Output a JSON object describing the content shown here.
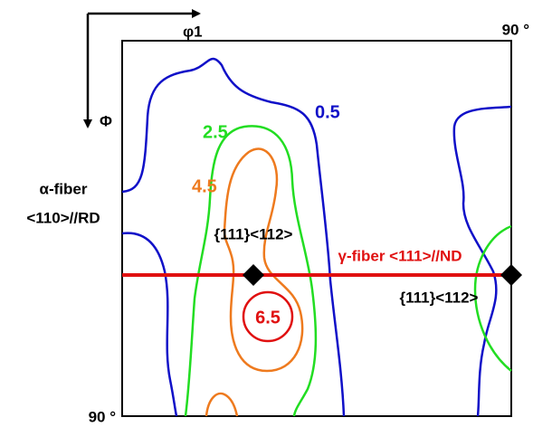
{
  "axes": {
    "x_label": "φ1",
    "x_end": "90 °",
    "y_label": "Φ",
    "y_end": "90 °"
  },
  "fibers": {
    "alpha_name": "α-fiber",
    "alpha_direction": "<110>//RD",
    "gamma": "γ-fiber <111>//ND"
  },
  "orientations": [
    "{111}<112>",
    "{111}<112>"
  ],
  "contour_labels": [
    "0.5",
    "2.5",
    "4.5",
    "6.5"
  ]
}
